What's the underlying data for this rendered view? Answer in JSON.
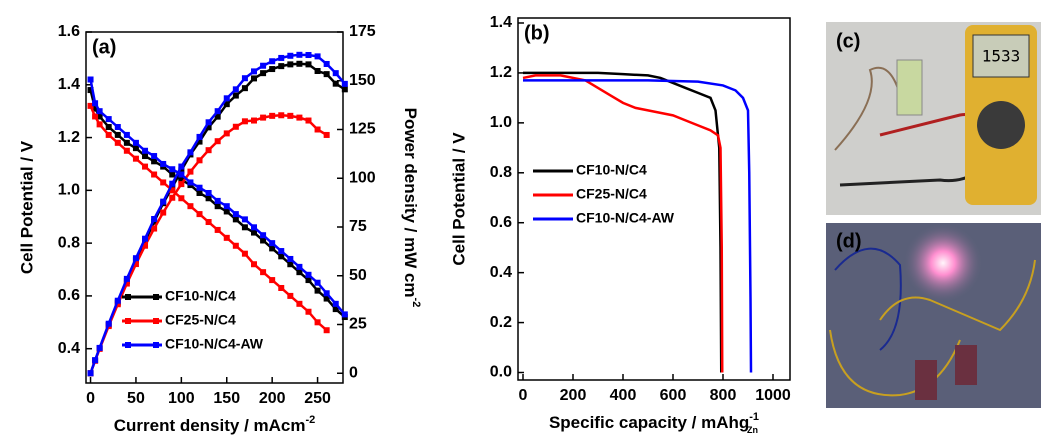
{
  "chart_data": [
    {
      "type": "line",
      "panel_label": "(a)",
      "x_label": "Current density / mAcm",
      "x_label_sup": "-2",
      "y_label": "Cell Potential / V",
      "y2_label": "Power density / mW cm",
      "y2_label_sup": "-2",
      "xlim": [
        -5,
        278
      ],
      "xticks": [
        0,
        50,
        100,
        150,
        200,
        250
      ],
      "ylim": [
        0.27,
        1.6
      ],
      "yticks": [
        0.4,
        0.6,
        0.8,
        1.0,
        1.2,
        1.4,
        1.6
      ],
      "y2lim": [
        -5,
        175
      ],
      "y2ticks": [
        0,
        25,
        50,
        75,
        100,
        125,
        150,
        175
      ],
      "legend": "lower left",
      "markers": true,
      "grid": false,
      "series": [
        {
          "name": "CF10-N/C4",
          "color": "#000000",
          "x": [
            0,
            5,
            10,
            20,
            30,
            40,
            50,
            60,
            70,
            80,
            90,
            100,
            110,
            120,
            130,
            140,
            150,
            160,
            170,
            180,
            190,
            200,
            210,
            220,
            230,
            240,
            250,
            260,
            270,
            280
          ],
          "values": [
            1.38,
            1.31,
            1.28,
            1.24,
            1.21,
            1.18,
            1.16,
            1.13,
            1.11,
            1.09,
            1.06,
            1.04,
            1.02,
            0.99,
            0.97,
            0.94,
            0.92,
            0.89,
            0.86,
            0.84,
            0.81,
            0.78,
            0.75,
            0.72,
            0.69,
            0.66,
            0.62,
            0.59,
            0.55,
            0.52
          ],
          "power": [
            0,
            6.6,
            12.8,
            24.8,
            36.3,
            47.2,
            58,
            67.8,
            77.7,
            87.2,
            95.4,
            104,
            112.2,
            118.8,
            126.1,
            131.6,
            138,
            142.4,
            146.2,
            151.2,
            153.9,
            156,
            157.5,
            158.4,
            158.7,
            158.4,
            155,
            153.4,
            148.5,
            145.6
          ]
        },
        {
          "name": "CF25-N/C4",
          "color": "#ff0000",
          "x": [
            0,
            5,
            10,
            20,
            30,
            40,
            50,
            60,
            70,
            80,
            90,
            100,
            110,
            120,
            130,
            140,
            150,
            160,
            170,
            180,
            190,
            200,
            210,
            220,
            230,
            240,
            250,
            260
          ],
          "values": [
            1.32,
            1.28,
            1.25,
            1.21,
            1.18,
            1.15,
            1.12,
            1.09,
            1.06,
            1.03,
            1.0,
            0.97,
            0.94,
            0.91,
            0.88,
            0.85,
            0.82,
            0.79,
            0.76,
            0.72,
            0.69,
            0.66,
            0.63,
            0.6,
            0.57,
            0.54,
            0.5,
            0.47
          ],
          "power": [
            0,
            6.4,
            12.5,
            24.2,
            35.4,
            46,
            56,
            65.4,
            74.2,
            82.4,
            90,
            97,
            103.4,
            109.2,
            114.4,
            119,
            123,
            126.4,
            129.2,
            129.6,
            131.1,
            132,
            132.3,
            132,
            131.1,
            129.6,
            125,
            122.2
          ]
        },
        {
          "name": "CF10-N/C4-AW",
          "color": "#0000ff",
          "x": [
            0,
            5,
            10,
            20,
            30,
            40,
            50,
            60,
            70,
            80,
            90,
            100,
            110,
            120,
            130,
            140,
            150,
            160,
            170,
            180,
            190,
            200,
            210,
            220,
            230,
            240,
            250,
            260,
            270,
            280
          ],
          "values": [
            1.42,
            1.33,
            1.3,
            1.27,
            1.24,
            1.21,
            1.18,
            1.15,
            1.13,
            1.1,
            1.08,
            1.06,
            1.03,
            1.01,
            0.99,
            0.96,
            0.94,
            0.91,
            0.89,
            0.86,
            0.83,
            0.8,
            0.77,
            0.74,
            0.71,
            0.68,
            0.65,
            0.61,
            0.57,
            0.53
          ],
          "power": [
            0,
            6.7,
            13,
            25.4,
            37.2,
            48.4,
            59,
            69,
            79.1,
            88,
            97.2,
            106,
            113.3,
            121.2,
            128.7,
            134.4,
            141,
            145.6,
            151.3,
            154.8,
            157.7,
            160,
            161.7,
            162.8,
            163.3,
            163.2,
            162.5,
            158.6,
            153.9,
            148.4
          ]
        }
      ]
    },
    {
      "type": "line",
      "panel_label": "(b)",
      "x_label": "Specific capacity / mAhg",
      "x_label_sup": "-1",
      "x_label_sub": "Zn",
      "y_label": "Cell Potential / V",
      "xlim": [
        -20,
        1068
      ],
      "xticks": [
        0,
        200,
        400,
        600,
        800,
        1000
      ],
      "ylim": [
        -0.03,
        1.42
      ],
      "yticks": [
        0.0,
        0.2,
        0.4,
        0.6,
        0.8,
        1.0,
        1.2,
        1.4
      ],
      "legend": "center left",
      "markers": false,
      "grid": false,
      "series": [
        {
          "name": "CF10-N/C4",
          "color": "#000000",
          "x": [
            0,
            100,
            200,
            300,
            400,
            500,
            550,
            600,
            650,
            700,
            750,
            770,
            785,
            790,
            793
          ],
          "values": [
            1.2,
            1.2,
            1.2,
            1.2,
            1.195,
            1.19,
            1.18,
            1.16,
            1.14,
            1.12,
            1.1,
            1.05,
            0.9,
            0.5,
            0.0
          ]
        },
        {
          "name": "CF25-N/C4",
          "color": "#ff0000",
          "x": [
            0,
            50,
            150,
            250,
            300,
            350,
            400,
            450,
            500,
            550,
            600,
            650,
            700,
            750,
            780,
            790,
            795,
            797
          ],
          "values": [
            1.18,
            1.19,
            1.19,
            1.17,
            1.14,
            1.11,
            1.08,
            1.06,
            1.05,
            1.04,
            1.03,
            1.01,
            0.99,
            0.97,
            0.95,
            0.9,
            0.5,
            0.0
          ]
        },
        {
          "name": "CF10-N/C4-AW",
          "color": "#0000ff",
          "x": [
            0,
            100,
            300,
            500,
            700,
            800,
            850,
            880,
            900,
            905,
            910,
            912
          ],
          "values": [
            1.17,
            1.17,
            1.17,
            1.17,
            1.165,
            1.15,
            1.13,
            1.1,
            1.05,
            0.8,
            0.3,
            0.0
          ]
        }
      ]
    }
  ],
  "photos": [
    {
      "panel_label": "(c)",
      "display": "1533"
    },
    {
      "panel_label": "(d)"
    }
  ]
}
